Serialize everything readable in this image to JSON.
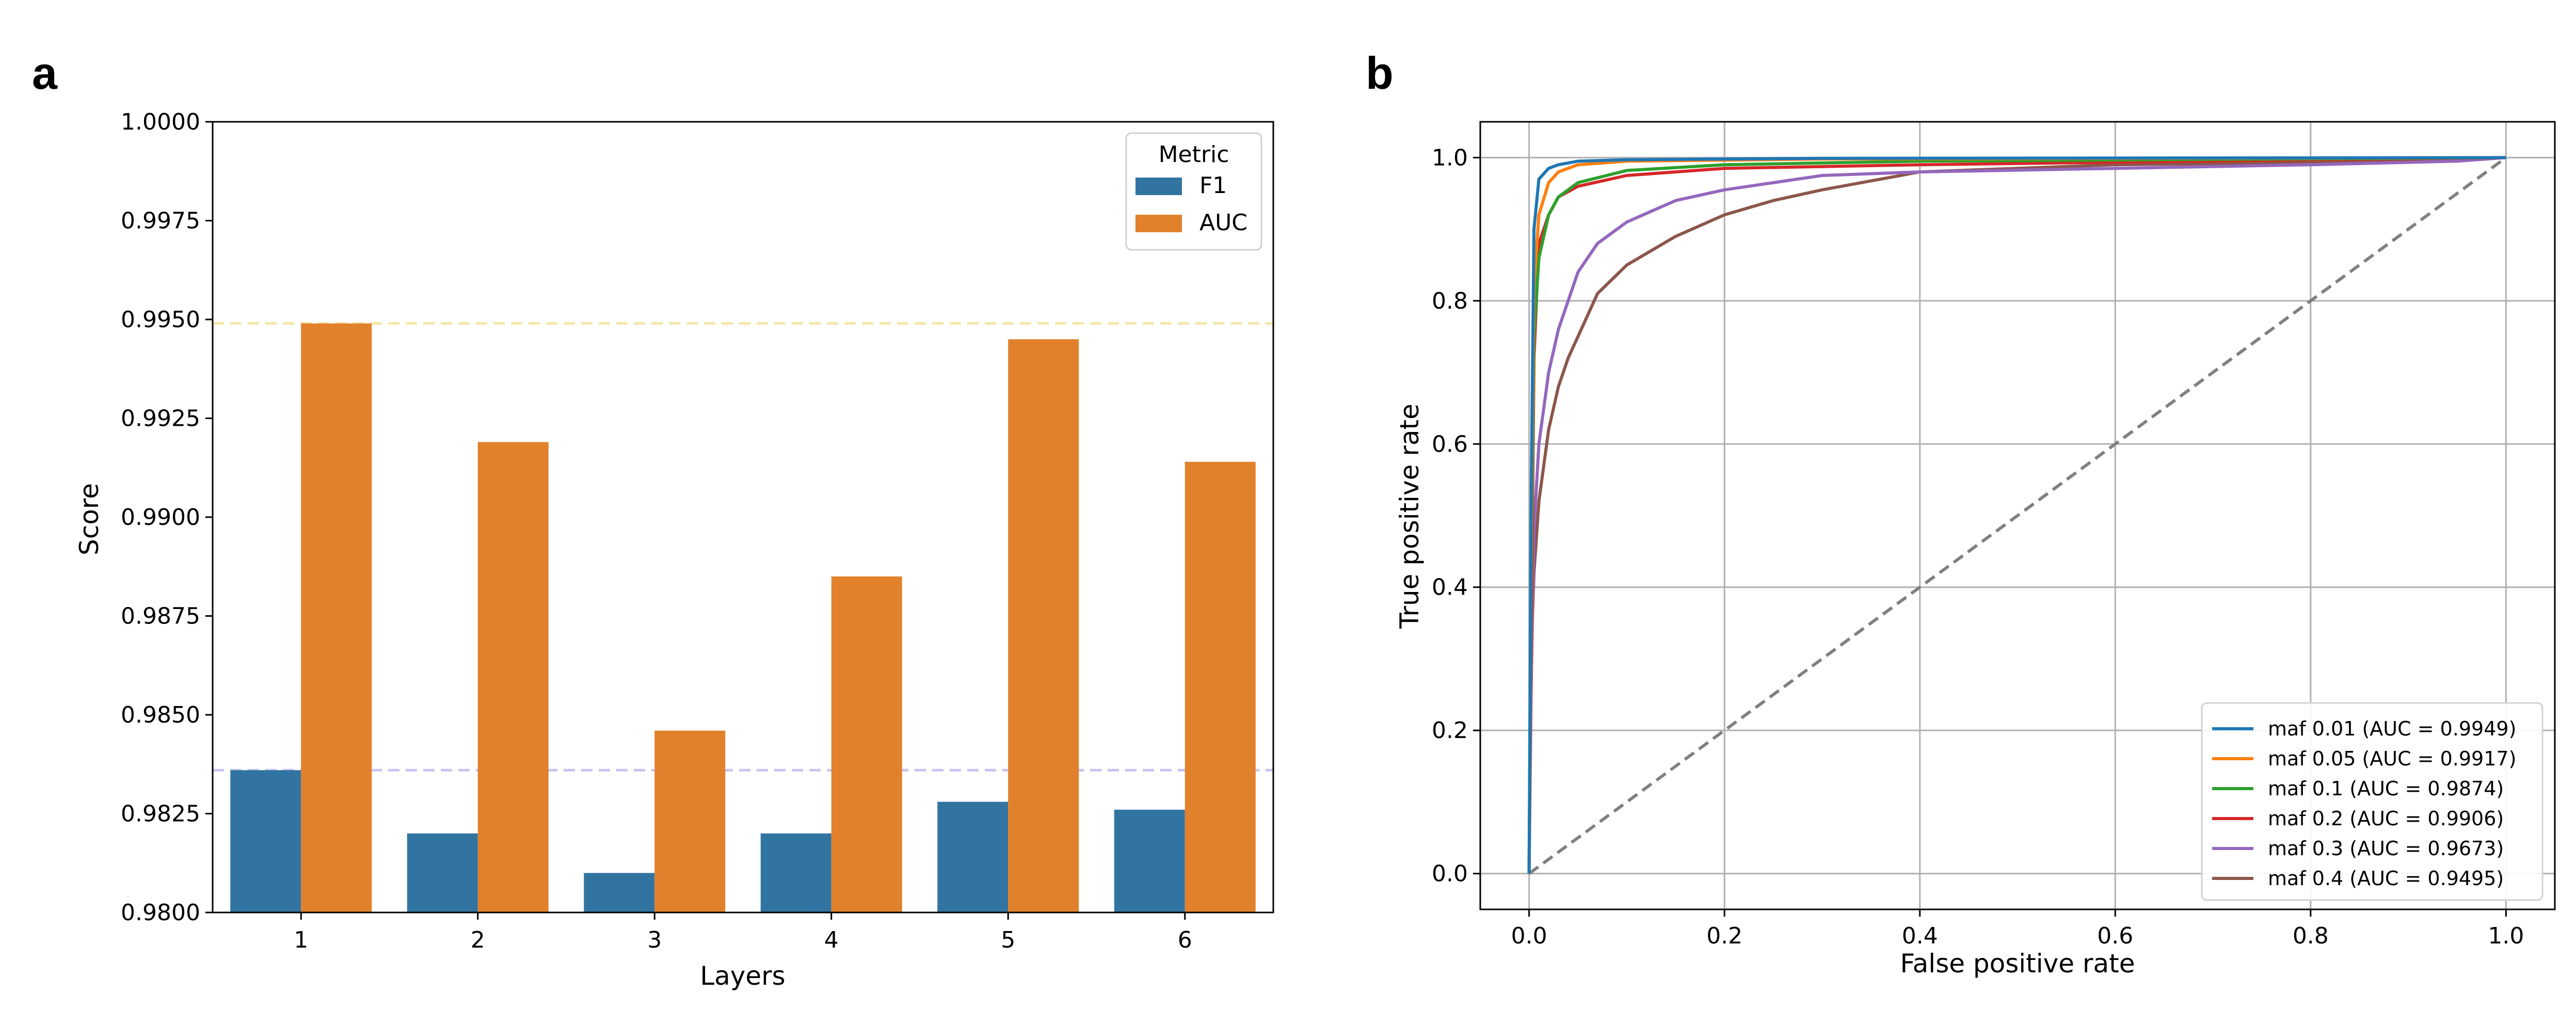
{
  "panels": {
    "a_label": "a",
    "b_label": "b"
  },
  "chart_data": [
    {
      "type": "bar",
      "xlabel": "Layers",
      "ylabel": "Score",
      "categories": [
        "1",
        "2",
        "3",
        "4",
        "5",
        "6"
      ],
      "ylim": [
        0.98,
        1.0
      ],
      "yticks": [
        "0.9800",
        "0.9825",
        "0.9850",
        "0.9875",
        "0.9900",
        "0.9925",
        "0.9950",
        "0.9975",
        "1.0000"
      ],
      "legend": {
        "title": "Metric",
        "placement": "top-right"
      },
      "series": [
        {
          "name": "F1",
          "color": "#3274a1",
          "values": [
            0.9836,
            0.982,
            0.981,
            0.982,
            0.9828,
            0.9826
          ]
        },
        {
          "name": "AUC",
          "color": "#e1812c",
          "values": [
            0.9949,
            0.9919,
            0.9846,
            0.9885,
            0.9945,
            0.9914
          ]
        }
      ],
      "reference_lines": [
        {
          "value": 0.9949,
          "color": "#f5e6a8",
          "style": "dashed"
        },
        {
          "value": 0.9836,
          "color": "#c9c2f2",
          "style": "dashed"
        }
      ],
      "grid": false
    },
    {
      "type": "line",
      "xlabel": "False positive rate",
      "ylabel": "True positive rate",
      "xlim": [
        -0.05,
        1.05
      ],
      "ylim": [
        -0.05,
        1.05
      ],
      "xticks": [
        "0.0",
        "0.2",
        "0.4",
        "0.6",
        "0.8",
        "1.0"
      ],
      "yticks": [
        "0.0",
        "0.2",
        "0.4",
        "0.6",
        "0.8",
        "1.0"
      ],
      "grid": true,
      "legend": {
        "placement": "lower-right"
      },
      "diagonal": {
        "color": "#808080",
        "style": "dashed"
      },
      "series": [
        {
          "name": "maf 0.01 (AUC = 0.9949)",
          "color": "#1f77b4",
          "x": [
            0,
            0.002,
            0.005,
            0.01,
            0.02,
            0.03,
            0.05,
            0.1,
            0.3,
            1.0
          ],
          "y": [
            0,
            0.5,
            0.9,
            0.97,
            0.985,
            0.99,
            0.995,
            0.997,
            0.999,
            1.0
          ]
        },
        {
          "name": "maf 0.05 (AUC = 0.9917)",
          "color": "#ff7f0e",
          "x": [
            0,
            0.002,
            0.005,
            0.01,
            0.02,
            0.03,
            0.05,
            0.1,
            0.3,
            1.0
          ],
          "y": [
            0,
            0.45,
            0.82,
            0.92,
            0.965,
            0.98,
            0.99,
            0.995,
            0.998,
            1.0
          ]
        },
        {
          "name": "maf 0.1 (AUC = 0.9874)",
          "color": "#2ca02c",
          "x": [
            0,
            0.002,
            0.005,
            0.01,
            0.02,
            0.03,
            0.05,
            0.1,
            0.2,
            0.4,
            1.0
          ],
          "y": [
            0,
            0.4,
            0.75,
            0.86,
            0.92,
            0.945,
            0.965,
            0.982,
            0.99,
            0.995,
            1.0
          ]
        },
        {
          "name": "maf 0.2 (AUC = 0.9906)",
          "color": "#d62728",
          "x": [
            0,
            0.002,
            0.005,
            0.01,
            0.02,
            0.03,
            0.05,
            0.1,
            0.2,
            0.4,
            0.8,
            1.0
          ],
          "y": [
            0,
            0.3,
            0.72,
            0.88,
            0.92,
            0.945,
            0.96,
            0.975,
            0.985,
            0.99,
            0.997,
            1.0
          ]
        },
        {
          "name": "maf 0.3 (AUC = 0.9673)",
          "color": "#9467bd",
          "x": [
            0,
            0.002,
            0.005,
            0.01,
            0.02,
            0.03,
            0.05,
            0.07,
            0.1,
            0.15,
            0.2,
            0.3,
            0.4,
            0.6,
            0.8,
            0.95,
            1.0
          ],
          "y": [
            0,
            0.25,
            0.48,
            0.6,
            0.7,
            0.76,
            0.84,
            0.88,
            0.91,
            0.94,
            0.955,
            0.975,
            0.98,
            0.985,
            0.99,
            0.995,
            1.0
          ]
        },
        {
          "name": "maf 0.4 (AUC = 0.9495)",
          "color": "#8c564b",
          "x": [
            0,
            0.002,
            0.005,
            0.01,
            0.02,
            0.03,
            0.04,
            0.05,
            0.07,
            0.1,
            0.15,
            0.2,
            0.25,
            0.3,
            0.4,
            0.6,
            0.8,
            1.0
          ],
          "y": [
            0,
            0.3,
            0.42,
            0.52,
            0.62,
            0.68,
            0.72,
            0.75,
            0.81,
            0.85,
            0.89,
            0.92,
            0.94,
            0.955,
            0.98,
            0.99,
            0.993,
            1.0
          ]
        }
      ]
    }
  ]
}
